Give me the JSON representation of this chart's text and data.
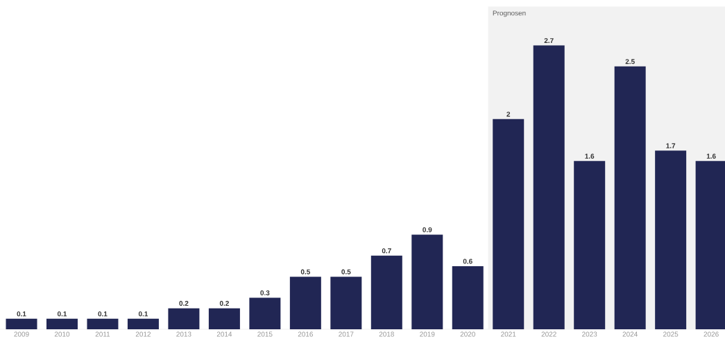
{
  "chart_data": {
    "type": "bar",
    "categories": [
      "2009",
      "2010",
      "2011",
      "2012",
      "2013",
      "2014",
      "2015",
      "2016",
      "2017",
      "2018",
      "2019",
      "2020",
      "2021",
      "2022",
      "2023",
      "2024",
      "2025",
      "2026"
    ],
    "values": [
      0.1,
      0.1,
      0.1,
      0.1,
      0.2,
      0.2,
      0.3,
      0.5,
      0.5,
      0.7,
      0.9,
      0.6,
      2,
      2.7,
      1.6,
      2.5,
      1.7,
      1.6
    ],
    "color": "#212654",
    "data_labels": true,
    "bands": [
      {
        "axis": "x",
        "from": "2021",
        "to": "2026",
        "label": "Prognosen",
        "color": "#f2f2f2"
      }
    ]
  }
}
